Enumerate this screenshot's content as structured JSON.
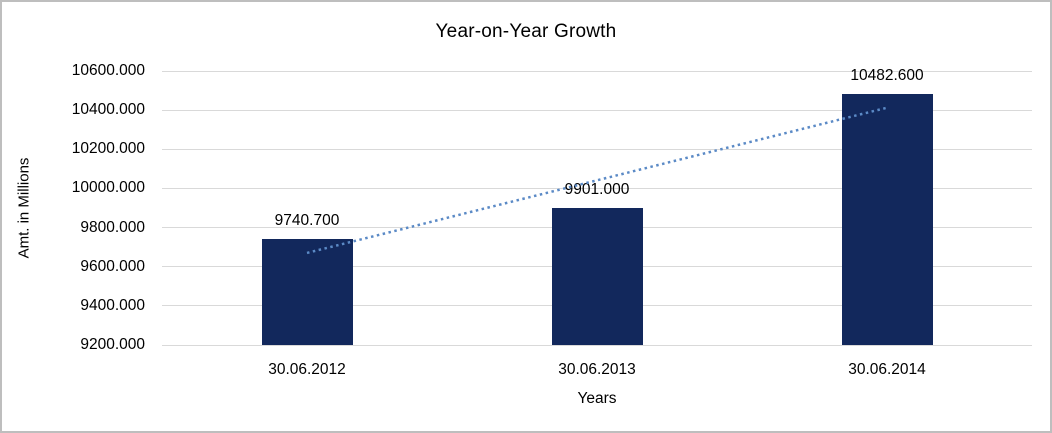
{
  "chart_data": {
    "type": "bar",
    "title": "Year-on-Year Growth",
    "xlabel": "Years",
    "ylabel": "Amt. in Millions",
    "categories": [
      "30.06.2012",
      "30.06.2013",
      "30.06.2014"
    ],
    "values": [
      9740.7,
      9901.0,
      10482.6
    ],
    "value_labels": [
      "9740.700",
      "9901.000",
      "10482.600"
    ],
    "yticks": [
      "9200.000",
      "9400.000",
      "9600.000",
      "9800.000",
      "10000.000",
      "10200.000",
      "10400.000",
      "10600.000"
    ],
    "ylim": [
      9200,
      10600
    ],
    "grid": "horizontal-only",
    "legend": "none",
    "trendline": {
      "type": "linear",
      "style": "dotted"
    },
    "colors": {
      "bar": "#12285C",
      "trendline": "#5B8AC6",
      "gridline": "#D9D9D9",
      "text": "#000000",
      "frame_border": "#BEBEBE",
      "background": "#FFFFFF"
    }
  }
}
